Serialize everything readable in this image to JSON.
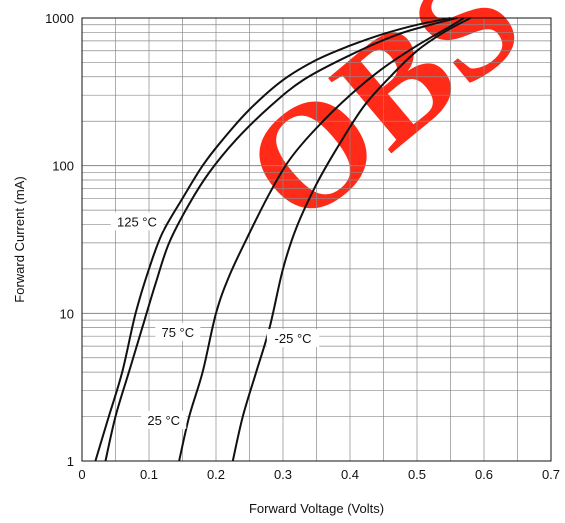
{
  "chart_data": {
    "type": "line",
    "x_scale": "linear",
    "y_scale": "log",
    "xlabel": "Forward Voltage (Volts)",
    "ylabel": "Forward Current (mA)",
    "xlim": [
      0,
      0.7
    ],
    "ylim": [
      1,
      1000
    ],
    "x_ticks": [
      "0",
      "0.1",
      "0.2",
      "0.3",
      "0.4",
      "0.5",
      "0.6",
      "0.7"
    ],
    "x_tick_values": [
      0,
      0.1,
      0.2,
      0.3,
      0.4,
      0.5,
      0.6,
      0.7
    ],
    "y_ticks": [
      "1",
      "10",
      "100",
      "1000"
    ],
    "y_tick_values": [
      1,
      10,
      100,
      1000
    ],
    "grid": true,
    "series": [
      {
        "name": "125 °C",
        "color": "#111111",
        "points": [
          [
            0.02,
            1
          ],
          [
            0.04,
            2
          ],
          [
            0.06,
            4
          ],
          [
            0.08,
            10
          ],
          [
            0.1,
            20
          ],
          [
            0.12,
            35
          ],
          [
            0.15,
            60
          ],
          [
            0.18,
            100
          ],
          [
            0.21,
            150
          ],
          [
            0.25,
            240
          ],
          [
            0.3,
            380
          ],
          [
            0.35,
            520
          ],
          [
            0.4,
            650
          ],
          [
            0.45,
            780
          ],
          [
            0.5,
            900
          ],
          [
            0.55,
            1000
          ]
        ]
      },
      {
        "name": "75 °C",
        "color": "#111111",
        "points": [
          [
            0.035,
            1
          ],
          [
            0.05,
            2
          ],
          [
            0.07,
            4
          ],
          [
            0.09,
            8
          ],
          [
            0.11,
            16
          ],
          [
            0.13,
            30
          ],
          [
            0.16,
            55
          ],
          [
            0.19,
            90
          ],
          [
            0.23,
            150
          ],
          [
            0.28,
            250
          ],
          [
            0.33,
            380
          ],
          [
            0.4,
            560
          ],
          [
            0.47,
            770
          ],
          [
            0.52,
            900
          ],
          [
            0.56,
            1000
          ]
        ]
      },
      {
        "name": "25 °C",
        "color": "#111111",
        "points": [
          [
            0.145,
            1
          ],
          [
            0.16,
            2
          ],
          [
            0.18,
            4
          ],
          [
            0.2,
            10
          ],
          [
            0.22,
            18
          ],
          [
            0.25,
            35
          ],
          [
            0.28,
            65
          ],
          [
            0.31,
            110
          ],
          [
            0.35,
            180
          ],
          [
            0.4,
            300
          ],
          [
            0.45,
            460
          ],
          [
            0.5,
            650
          ],
          [
            0.55,
            880
          ],
          [
            0.57,
            1000
          ]
        ]
      },
      {
        "name": "-25 °C",
        "color": "#111111",
        "points": [
          [
            0.225,
            1
          ],
          [
            0.24,
            2
          ],
          [
            0.26,
            4
          ],
          [
            0.28,
            8
          ],
          [
            0.3,
            20
          ],
          [
            0.32,
            38
          ],
          [
            0.35,
            75
          ],
          [
            0.38,
            130
          ],
          [
            0.42,
            250
          ],
          [
            0.46,
            400
          ],
          [
            0.5,
            600
          ],
          [
            0.54,
            800
          ],
          [
            0.58,
            1000
          ]
        ]
      }
    ],
    "annotations": [
      {
        "text": "125 °C",
        "x": 0.082,
        "y": 42
      },
      {
        "text": "75 °C",
        "x": 0.143,
        "y": 7.5
      },
      {
        "text": "25 °C",
        "x": 0.122,
        "y": 1.9
      },
      {
        "text": "-25 °C",
        "x": 0.315,
        "y": 6.8
      }
    ],
    "watermark": {
      "text": "OBS",
      "color": "#ff2a17"
    }
  }
}
